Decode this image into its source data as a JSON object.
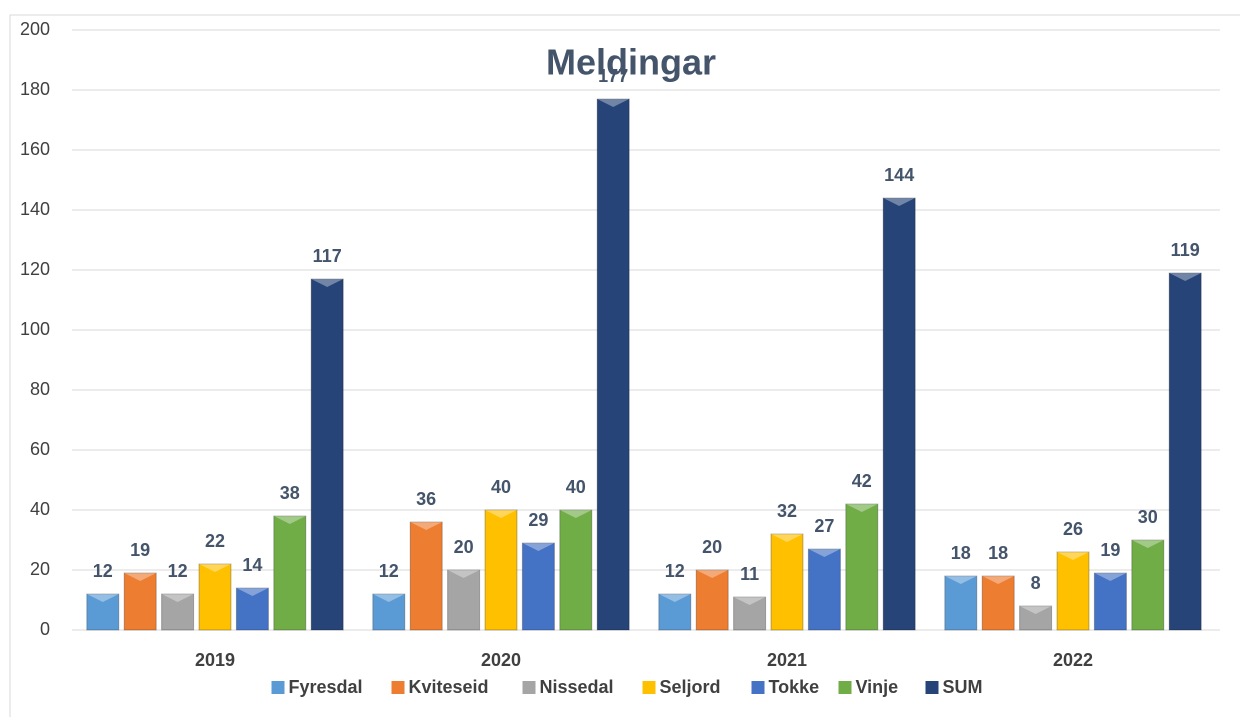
{
  "chart_data": {
    "type": "bar",
    "title": "Meldingar",
    "categories": [
      "2019",
      "2020",
      "2021",
      "2022"
    ],
    "series": [
      {
        "name": "Fyresdal",
        "color": "#5b9bd5",
        "values": [
          12,
          12,
          12,
          18
        ]
      },
      {
        "name": "Kviteseid",
        "color": "#ed7d31",
        "values": [
          19,
          36,
          20,
          18
        ]
      },
      {
        "name": "Nissedal",
        "color": "#a5a5a5",
        "values": [
          12,
          20,
          11,
          8
        ]
      },
      {
        "name": "Seljord",
        "color": "#ffc000",
        "values": [
          22,
          40,
          32,
          26
        ]
      },
      {
        "name": "Tokke",
        "color": "#4472c4",
        "values": [
          14,
          29,
          27,
          19
        ]
      },
      {
        "name": "Vinje",
        "color": "#70ad47",
        "values": [
          38,
          40,
          42,
          30
        ]
      },
      {
        "name": "SUM",
        "color": "#264478",
        "values": [
          117,
          177,
          144,
          119
        ]
      }
    ],
    "ylim": [
      0,
      200
    ],
    "yticks": [
      0,
      20,
      40,
      60,
      80,
      100,
      120,
      140,
      160,
      180,
      200
    ],
    "grid": true,
    "legend": "bottom"
  }
}
